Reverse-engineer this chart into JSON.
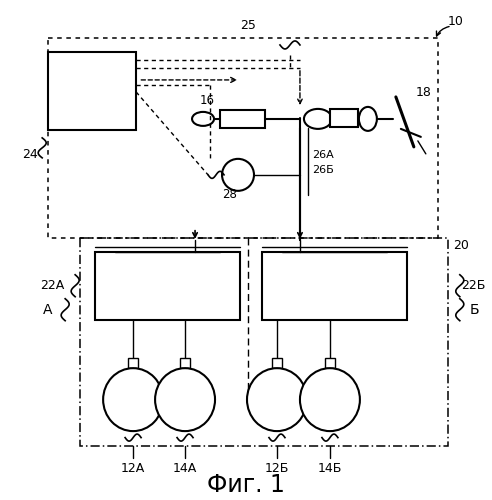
{
  "title": "Фиг. 1",
  "bg_color": "#ffffff",
  "line_color": "#000000",
  "label_10": "10",
  "label_18": "18",
  "label_25": "25",
  "label_16": "16",
  "label_26A": "26A",
  "label_26B": "26Б",
  "label_28": "28",
  "label_24": "24",
  "label_20": "20",
  "label_22A": "22A",
  "label_22B": "22Б",
  "label_A": "A",
  "label_B": "Б",
  "label_12A": "12A",
  "label_14A": "14A",
  "label_12B": "12Б",
  "label_14B": "14Б"
}
